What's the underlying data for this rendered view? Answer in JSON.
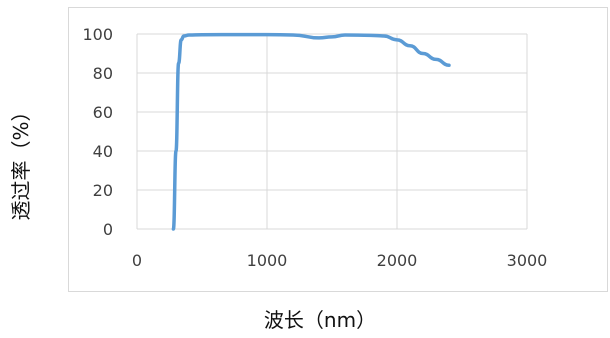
{
  "chart_data": {
    "type": "line",
    "xlabel": "波长（nm）",
    "ylabel": "透过率（%）",
    "xlim": [
      0,
      3000
    ],
    "ylim": [
      0,
      100
    ],
    "x_ticks": [
      0,
      1000,
      2000,
      3000
    ],
    "y_ticks": [
      0,
      20,
      40,
      60,
      80,
      100
    ],
    "x_tick_labels": [
      "0",
      "1000",
      "2000",
      "3000"
    ],
    "y_tick_labels": [
      "0",
      "20",
      "40",
      "60",
      "80",
      "100"
    ],
    "grid": true,
    "legend": "none",
    "series": [
      {
        "color": "#5b9bd5",
        "x": [
          280,
          300,
          320,
          340,
          360,
          400,
          500,
          800,
          1000,
          1200,
          1400,
          1500,
          1600,
          1800,
          1900,
          2000,
          2100,
          2200,
          2300,
          2400
        ],
        "y": [
          0,
          40,
          85,
          97,
          99,
          99.5,
          99.6,
          99.7,
          99.7,
          99.5,
          98,
          98.5,
          99.5,
          99.3,
          99,
          97,
          94,
          90,
          87,
          84
        ]
      }
    ]
  }
}
